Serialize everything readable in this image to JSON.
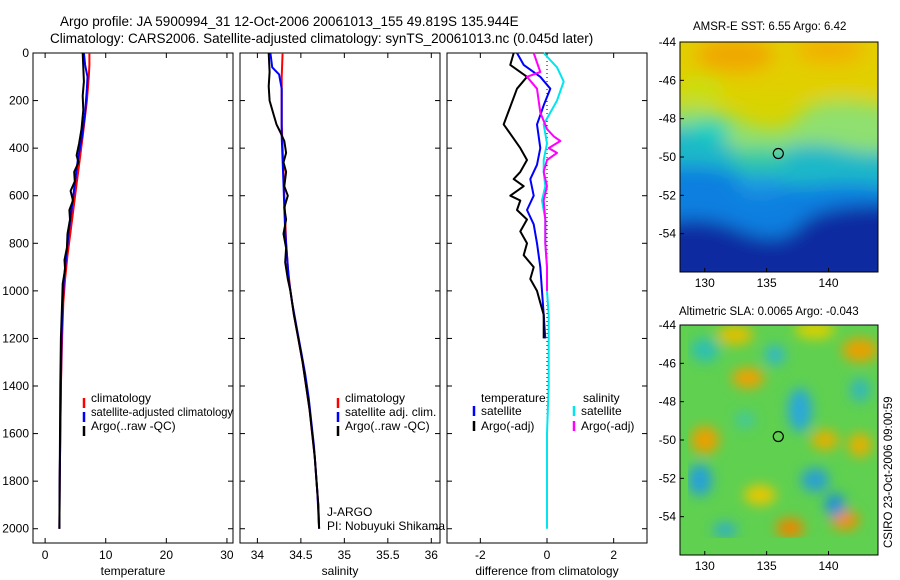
{
  "figure": {
    "title_line1": "Argo profile: JA 5900994_31 12-Oct-2006 20061013_155 49.819S 135.944E",
    "title_line2": "Climatology: CARS2006. Satellite-adjusted climatology: synTS_20061013.nc (0.045d later)",
    "side_label": "CSIRO 23-Oct-2006 09:00:59",
    "project_label": "J-ARGO",
    "pi_label": "PI: Nobuyuki Shikama"
  },
  "colors": {
    "climatology": "#ff0000",
    "satellite": "#0000ff",
    "argo": "#000000",
    "salinity_satellite": "#00e5ee",
    "salinity_argo": "#ff00ff"
  },
  "chart_data": [
    {
      "id": "temperature",
      "type": "line",
      "xlabel": "temperature",
      "ylabel": "",
      "xlim": [
        -2,
        31
      ],
      "ylim": [
        2060,
        0
      ],
      "xticks": [
        0,
        10,
        20,
        30
      ],
      "xtick_labels": [
        "0",
        "10",
        "20",
        "30"
      ],
      "yticks": [
        0,
        200,
        400,
        600,
        800,
        1000,
        1200,
        1400,
        1600,
        1800,
        2000
      ],
      "ytick_labels": [
        "0",
        "200",
        "400",
        "600",
        "800",
        "1000",
        "1200",
        "1400",
        "1600",
        "1800",
        "2000"
      ],
      "legend": {
        "placement": "lower-right",
        "entries": [
          "climatology",
          "satellite-adjusted climatology",
          "Argo(..raw -QC)"
        ]
      },
      "series": [
        {
          "name": "climatology",
          "color": "#ff0000",
          "points": [
            [
              7.3,
              0
            ],
            [
              7.3,
              50
            ],
            [
              7.2,
              100
            ],
            [
              6.9,
              200
            ],
            [
              6.2,
              350
            ],
            [
              5.7,
              450
            ],
            [
              5.2,
              550
            ],
            [
              4.7,
              650
            ],
            [
              4.2,
              750
            ],
            [
              3.7,
              850
            ],
            [
              3.3,
              950
            ],
            [
              3.0,
              1050
            ],
            [
              2.8,
              1200
            ],
            [
              2.6,
              1400
            ],
            [
              2.5,
              1600
            ],
            [
              2.4,
              1800
            ],
            [
              2.35,
              2000
            ]
          ]
        },
        {
          "name": "satellite-adjusted climatology",
          "color": "#0000ff",
          "points": [
            [
              6.4,
              0
            ],
            [
              6.6,
              50
            ],
            [
              7.0,
              100
            ],
            [
              6.9,
              150
            ],
            [
              6.6,
              250
            ],
            [
              6.1,
              350
            ],
            [
              5.4,
              450
            ],
            [
              4.9,
              550
            ],
            [
              4.4,
              650
            ],
            [
              3.9,
              750
            ],
            [
              3.5,
              850
            ],
            [
              3.1,
              950
            ],
            [
              2.9,
              1050
            ],
            [
              2.7,
              1200
            ],
            [
              2.6,
              1400
            ],
            [
              2.5,
              1600
            ],
            [
              2.4,
              1800
            ],
            [
              2.35,
              2000
            ]
          ]
        },
        {
          "name": "Argo(..raw -QC)",
          "color": "#000000",
          "points": [
            [
              6.2,
              0
            ],
            [
              6.3,
              60
            ],
            [
              6.4,
              120
            ],
            [
              6.2,
              180
            ],
            [
              6.3,
              240
            ],
            [
              6.0,
              320
            ],
            [
              5.6,
              380
            ],
            [
              5.2,
              430
            ],
            [
              5.5,
              460
            ],
            [
              4.8,
              500
            ],
            [
              4.9,
              540
            ],
            [
              4.2,
              580
            ],
            [
              4.6,
              620
            ],
            [
              4.0,
              660
            ],
            [
              4.1,
              700
            ],
            [
              3.7,
              760
            ],
            [
              3.6,
              820
            ],
            [
              3.2,
              870
            ],
            [
              3.3,
              910
            ],
            [
              2.9,
              970
            ],
            [
              2.8,
              1050
            ],
            [
              2.6,
              1200
            ],
            [
              2.5,
              1400
            ],
            [
              2.45,
              1600
            ],
            [
              2.4,
              1800
            ],
            [
              2.35,
              2000
            ]
          ]
        }
      ]
    },
    {
      "id": "salinity",
      "type": "line",
      "xlabel": "salinity",
      "ylabel": "",
      "xlim": [
        33.8,
        36.1
      ],
      "ylim": [
        2060,
        0
      ],
      "xticks": [
        34,
        34.5,
        35,
        35.5,
        36
      ],
      "xtick_labels": [
        "34",
        "34.5",
        "35",
        "35.5",
        "36"
      ],
      "legend": {
        "placement": "lower-right",
        "entries": [
          "climatology",
          "satellite adj. clim.",
          "Argo(..raw -QC)"
        ]
      },
      "series": [
        {
          "name": "climatology",
          "color": "#ff0000",
          "points": [
            [
              34.29,
              0
            ],
            [
              34.28,
              100
            ],
            [
              34.28,
              200
            ],
            [
              34.28,
              300
            ],
            [
              34.29,
              400
            ],
            [
              34.3,
              500
            ],
            [
              34.31,
              600
            ],
            [
              34.32,
              700
            ],
            [
              34.33,
              800
            ],
            [
              34.35,
              900
            ],
            [
              34.38,
              1000
            ],
            [
              34.42,
              1100
            ],
            [
              34.47,
              1200
            ],
            [
              34.52,
              1300
            ],
            [
              34.56,
              1400
            ],
            [
              34.6,
              1500
            ],
            [
              34.63,
              1600
            ],
            [
              34.66,
              1700
            ],
            [
              34.68,
              1800
            ],
            [
              34.7,
              1900
            ],
            [
              34.71,
              2000
            ]
          ]
        },
        {
          "name": "satellite adj. clim.",
          "color": "#0000ff",
          "points": [
            [
              34.15,
              0
            ],
            [
              34.17,
              60
            ],
            [
              34.25,
              90
            ],
            [
              34.28,
              150
            ],
            [
              34.28,
              250
            ],
            [
              34.28,
              350
            ],
            [
              34.29,
              450
            ],
            [
              34.3,
              550
            ],
            [
              34.31,
              650
            ],
            [
              34.32,
              750
            ],
            [
              34.34,
              850
            ],
            [
              34.36,
              950
            ],
            [
              34.4,
              1050
            ],
            [
              34.45,
              1150
            ],
            [
              34.5,
              1250
            ],
            [
              34.55,
              1350
            ],
            [
              34.59,
              1450
            ],
            [
              34.62,
              1550
            ],
            [
              34.65,
              1650
            ],
            [
              34.67,
              1750
            ],
            [
              34.69,
              1850
            ],
            [
              34.71,
              2000
            ]
          ]
        },
        {
          "name": "Argo(..raw -QC)",
          "color": "#000000",
          "points": [
            [
              34.13,
              0
            ],
            [
              34.14,
              80
            ],
            [
              34.13,
              140
            ],
            [
              34.14,
              200
            ],
            [
              34.18,
              250
            ],
            [
              34.22,
              300
            ],
            [
              34.26,
              330
            ],
            [
              34.31,
              370
            ],
            [
              34.33,
              420
            ],
            [
              34.3,
              460
            ],
            [
              34.33,
              500
            ],
            [
              34.31,
              560
            ],
            [
              34.35,
              600
            ],
            [
              34.31,
              650
            ],
            [
              34.33,
              700
            ],
            [
              34.3,
              760
            ],
            [
              34.33,
              820
            ],
            [
              34.32,
              880
            ],
            [
              34.35,
              950
            ],
            [
              34.38,
              1000
            ],
            [
              34.42,
              1100
            ],
            [
              34.47,
              1200
            ],
            [
              34.52,
              1300
            ],
            [
              34.56,
              1400
            ],
            [
              34.6,
              1500
            ],
            [
              34.63,
              1600
            ],
            [
              34.66,
              1700
            ],
            [
              34.68,
              1800
            ],
            [
              34.7,
              1900
            ],
            [
              34.71,
              2000
            ]
          ]
        }
      ]
    },
    {
      "id": "difference",
      "type": "line",
      "xlabel": "difference from climatology",
      "ylabel": "",
      "xlim": [
        -3,
        3
      ],
      "ylim": [
        2060,
        0
      ],
      "xticks": [
        -2,
        0,
        2
      ],
      "xtick_labels": [
        "-2",
        "0",
        "2"
      ],
      "legend": {
        "placement": "lower-center",
        "temperature_header": "temperature",
        "salinity_header": "salinity",
        "entries": [
          "satellite",
          "Argo(-adj)",
          "satellite",
          "Argo(-adj)"
        ]
      },
      "series": [
        {
          "name": "temperature satellite",
          "color": "#0000ff",
          "points": [
            [
              -0.9,
              0
            ],
            [
              -0.7,
              50
            ],
            [
              -0.2,
              100
            ],
            [
              0.1,
              150
            ],
            [
              -0.1,
              220
            ],
            [
              -0.3,
              300
            ],
            [
              -0.2,
              400
            ],
            [
              -0.3,
              470
            ],
            [
              -0.5,
              530
            ],
            [
              -0.4,
              600
            ],
            [
              -0.6,
              660
            ],
            [
              -0.4,
              720
            ],
            [
              -0.3,
              800
            ],
            [
              -0.2,
              900
            ],
            [
              -0.15,
              1000
            ],
            [
              -0.1,
              1100
            ],
            [
              -0.05,
              1200
            ]
          ]
        },
        {
          "name": "temperature Argo(-adj)",
          "color": "#000000",
          "points": [
            [
              -1.0,
              0
            ],
            [
              -1.1,
              50
            ],
            [
              -0.6,
              100
            ],
            [
              -0.9,
              150
            ],
            [
              -1.3,
              300
            ],
            [
              -0.8,
              400
            ],
            [
              -0.6,
              450
            ],
            [
              -0.8,
              500
            ],
            [
              -1.0,
              530
            ],
            [
              -0.7,
              560
            ],
            [
              -1.1,
              600
            ],
            [
              -0.8,
              620
            ],
            [
              -0.9,
              660
            ],
            [
              -0.6,
              700
            ],
            [
              -0.8,
              750
            ],
            [
              -0.6,
              800
            ],
            [
              -0.7,
              850
            ],
            [
              -0.4,
              900
            ],
            [
              -0.5,
              950
            ],
            [
              -0.3,
              1000
            ],
            [
              -0.2,
              1050
            ],
            [
              -0.1,
              1100
            ],
            [
              -0.1,
              1200
            ]
          ]
        },
        {
          "name": "salinity satellite",
          "color": "#00e5ee",
          "points": [
            [
              -0.1,
              0
            ],
            [
              0.3,
              60
            ],
            [
              0.5,
              120
            ],
            [
              0.3,
              200
            ],
            [
              -0.1,
              300
            ],
            [
              0.0,
              380
            ],
            [
              -0.1,
              450
            ],
            [
              -0.1,
              500
            ],
            [
              -0.05,
              560
            ],
            [
              -0.15,
              620
            ],
            [
              -0.05,
              700
            ],
            [
              -0.05,
              800
            ],
            [
              0.0,
              900
            ],
            [
              0.0,
              1000
            ],
            [
              0.05,
              1100
            ],
            [
              0.05,
              1200
            ],
            [
              0.05,
              1400
            ],
            [
              0.0,
              1600
            ],
            [
              0.0,
              1800
            ],
            [
              0.0,
              2000
            ]
          ]
        },
        {
          "name": "salinity Argo(-adj)",
          "color": "#ff00ff",
          "points": [
            [
              -0.4,
              0
            ],
            [
              -0.2,
              80
            ],
            [
              -0.6,
              100
            ],
            [
              -0.3,
              150
            ],
            [
              -0.2,
              250
            ],
            [
              0.0,
              320
            ],
            [
              0.2,
              350
            ],
            [
              0.4,
              370
            ],
            [
              0.05,
              400
            ],
            [
              0.3,
              420
            ],
            [
              0.0,
              450
            ],
            [
              -0.1,
              500
            ],
            [
              0.0,
              560
            ],
            [
              -0.1,
              620
            ],
            [
              -0.05,
              700
            ],
            [
              -0.05,
              800
            ],
            [
              0.0,
              900
            ],
            [
              0.0,
              1000
            ]
          ]
        }
      ]
    },
    {
      "id": "amsr_sst_map",
      "type": "heatmap",
      "title": "AMSR-E SST: 6.55 Argo: 6.42",
      "xlim": [
        128,
        144
      ],
      "ylim": [
        -56,
        -44
      ],
      "xticks": [
        130,
        135,
        140
      ],
      "xtick_labels": [
        "130",
        "135",
        "140"
      ],
      "yticks": [
        -44,
        -46,
        -48,
        -50,
        -52,
        -54
      ],
      "ytick_labels": [
        "-44",
        "-46",
        "-48",
        "-50",
        "-52",
        "-54"
      ],
      "marker": {
        "lon": 135.944,
        "lat": -49.819
      }
    },
    {
      "id": "altimetric_sla_map",
      "type": "heatmap",
      "title": "Altimetric SLA: 0.0065 Argo: -0.043",
      "xlim": [
        128,
        144
      ],
      "ylim": [
        -56,
        -44
      ],
      "xticks": [
        130,
        135,
        140
      ],
      "xtick_labels": [
        "130",
        "135",
        "140"
      ],
      "yticks": [
        -44,
        -46,
        -48,
        -50,
        -52,
        -54
      ],
      "ytick_labels": [
        "-44",
        "-46",
        "-48",
        "-50",
        "-52",
        "-54"
      ],
      "marker": {
        "lon": 135.944,
        "lat": -49.819
      }
    }
  ]
}
